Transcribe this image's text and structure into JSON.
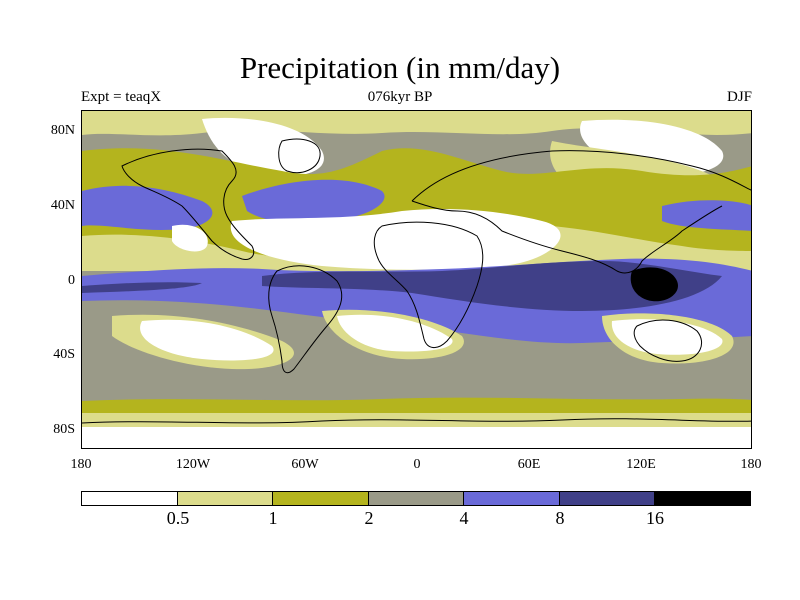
{
  "title": "Precipitation (in mm/day)",
  "subtitle_left": "Expt = teaqX",
  "subtitle_center": "076kyr BP",
  "subtitle_right": "DJF",
  "axes": {
    "y_ticks": [
      "80N",
      "40N",
      "0",
      "40S",
      "80S"
    ],
    "x_ticks": [
      "180",
      "120W",
      "60W",
      "0",
      "60E",
      "120E",
      "180"
    ]
  },
  "colorbar": {
    "labels": [
      "0.5",
      "1",
      "2",
      "4",
      "8",
      "16"
    ],
    "colors": [
      "#ffffff",
      "#dcdc8c",
      "#b4b41e",
      "#9a9a88",
      "#6a6ad8",
      "#404088",
      "#000000"
    ]
  },
  "map_colors": {
    "c0": "#ffffff",
    "c1": "#dcdc8c",
    "c2": "#b4b41e",
    "c3": "#9a9a88",
    "c4": "#6a6ad8",
    "c5": "#404088",
    "c6": "#000000",
    "coast": "#000000"
  }
}
